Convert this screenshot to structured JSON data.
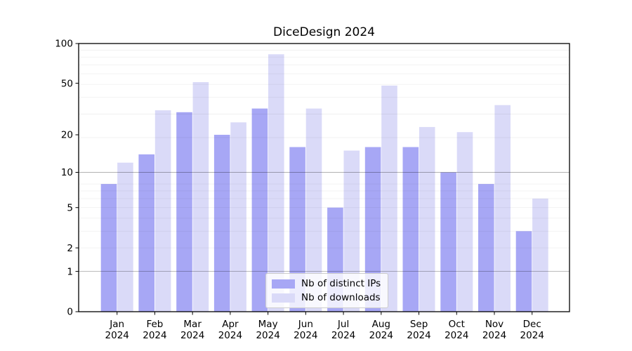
{
  "chart_data": {
    "type": "bar",
    "title": "DiceDesign 2024",
    "y_scale": "log1p",
    "ylim": [
      0,
      100
    ],
    "y_ticks": [
      0,
      1,
      2,
      5,
      10,
      20,
      50,
      100
    ],
    "y_major_gridlines": [
      1,
      10
    ],
    "grid": true,
    "categories": [
      "Jan",
      "Feb",
      "Mar",
      "Apr",
      "May",
      "Jun",
      "Jul",
      "Aug",
      "Sep",
      "Oct",
      "Nov",
      "Dec"
    ],
    "category_year": "2024",
    "series": [
      {
        "name": "Nb of distinct IPs",
        "color": "#a7a7f5",
        "values": [
          8,
          14,
          30,
          20,
          32,
          16,
          5,
          16,
          16,
          10,
          8,
          3
        ]
      },
      {
        "name": "Nb of downloads",
        "color": "#dadaf8",
        "values": [
          12,
          31,
          51,
          25,
          83,
          32,
          15,
          48,
          23,
          21,
          34,
          6
        ]
      }
    ],
    "legend_position": "lower center"
  }
}
